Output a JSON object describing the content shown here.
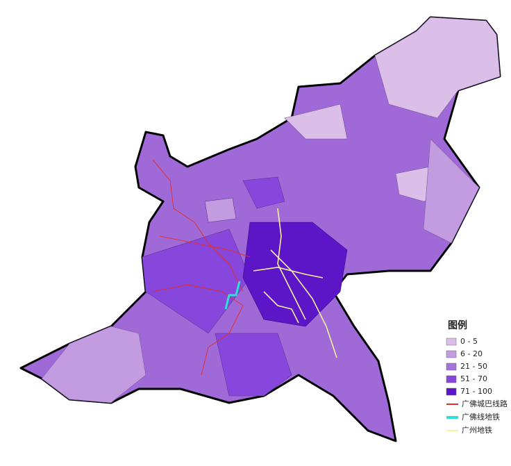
{
  "legend": {
    "title": "图例",
    "classes": [
      {
        "label": "0 - 5",
        "color": "#dcbfe8"
      },
      {
        "label": "6 - 20",
        "color": "#c39be0"
      },
      {
        "label": "21 - 50",
        "color": "#a571dc"
      },
      {
        "label": "51 - 70",
        "color": "#8747dc"
      },
      {
        "label": "71 - 100",
        "color": "#5c16c8"
      }
    ],
    "lines": [
      {
        "label": "广佛城巴线路",
        "color": "#e0302a"
      },
      {
        "label": "广佛线地铁",
        "color": "#2de0d8"
      },
      {
        "label": "广州地铁",
        "color": "#f7f29a"
      }
    ]
  }
}
